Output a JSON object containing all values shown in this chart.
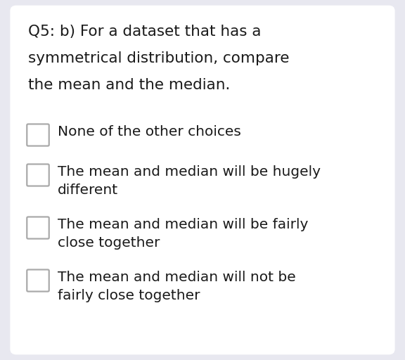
{
  "background_color": "#e8e8f0",
  "card_color": "#ffffff",
  "question_lines": [
    "Q5: b) For a dataset that has a",
    "symmetrical distribution, compare",
    "the mean and the median."
  ],
  "choices": [
    [
      "None of the other choices"
    ],
    [
      "The mean and median will be hugely",
      "different"
    ],
    [
      "The mean and median will be fairly",
      "close together"
    ],
    [
      "The mean and median will not be",
      "fairly close together"
    ]
  ],
  "text_color": "#1a1a1a",
  "checkbox_edge_color": "#aaaaaa",
  "checkbox_fill_color": "#ffffff",
  "question_fontsize": 15.5,
  "choice_fontsize": 14.5
}
